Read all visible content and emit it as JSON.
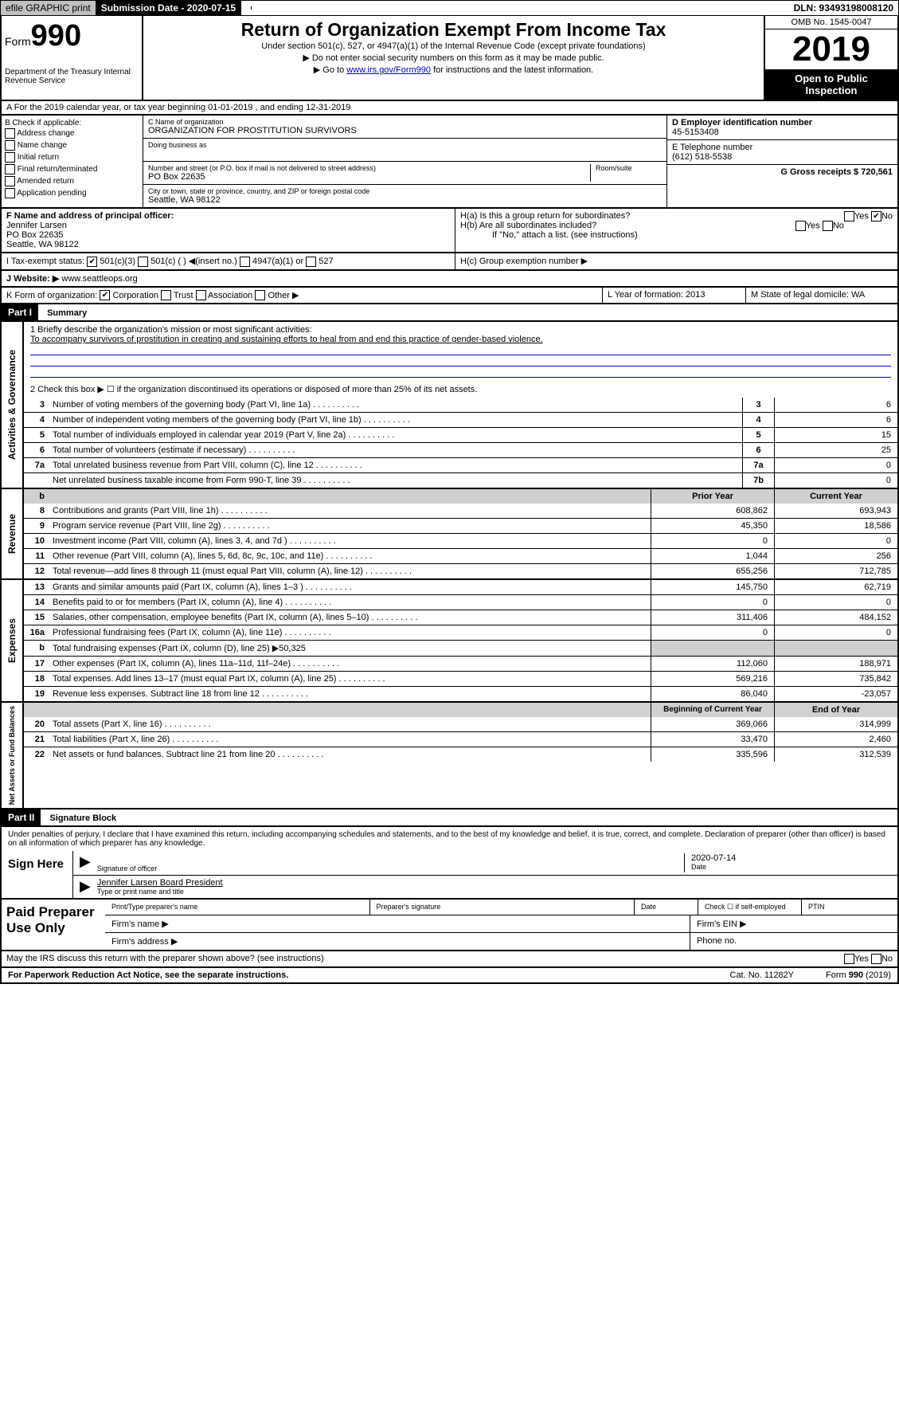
{
  "top": {
    "efile": "efile GRAPHIC print",
    "subdate_label": "Submission Date - 2020-07-15",
    "dln": "DLN: 93493198008120"
  },
  "header": {
    "form_prefix": "Form",
    "form_num": "990",
    "dept": "Department of the Treasury\nInternal Revenue Service",
    "title": "Return of Organization Exempt From Income Tax",
    "sub1": "Under section 501(c), 527, or 4947(a)(1) of the Internal Revenue Code (except private foundations)",
    "sub2": "▶ Do not enter social security numbers on this form as it may be made public.",
    "sub3_pre": "▶ Go to ",
    "sub3_link": "www.irs.gov/Form990",
    "sub3_post": " for instructions and the latest information.",
    "omb": "OMB No. 1545-0047",
    "year": "2019",
    "open": "Open to Public Inspection"
  },
  "line_a": "A   For the 2019 calendar year, or tax year beginning 01-01-2019    , and ending 12-31-2019",
  "b": {
    "label": "B Check if applicable:",
    "opts": [
      "Address change",
      "Name change",
      "Initial return",
      "Final return/terminated",
      "Amended return",
      "Application pending"
    ]
  },
  "c": {
    "label": "C Name of organization",
    "name": "ORGANIZATION FOR PROSTITUTION SURVIVORS",
    "dba_label": "Doing business as",
    "addr_label": "Number and street (or P.O. box if mail is not delivered to street address)",
    "room_label": "Room/suite",
    "addr": "PO Box 22635",
    "city_label": "City or town, state or province, country, and ZIP or foreign postal code",
    "city": "Seattle, WA  98122"
  },
  "d": {
    "label": "D Employer identification number",
    "val": "45-5153408"
  },
  "e": {
    "label": "E Telephone number",
    "val": "(612) 518-5538"
  },
  "g": {
    "label": "G Gross receipts $ 720,561"
  },
  "f": {
    "label": "F  Name and address of principal officer:",
    "name": "Jennifer Larsen",
    "addr1": "PO Box 22635",
    "addr2": "Seattle, WA  98122"
  },
  "h": {
    "a": "H(a)  Is this a group return for subordinates?",
    "b": "H(b)  Are all subordinates included?",
    "b_note": "If \"No,\" attach a list. (see instructions)",
    "c": "H(c)  Group exemption number ▶"
  },
  "i": {
    "label": "I    Tax-exempt status:",
    "c3": "501(c)(3)",
    "c": "501(c) (  ) ◀(insert no.)",
    "a1": "4947(a)(1) or",
    "527": "527"
  },
  "j": {
    "label": "J    Website: ▶",
    "val": "www.seattleops.org"
  },
  "k": {
    "label": "K Form of organization:",
    "corp": "Corporation",
    "trust": "Trust",
    "assoc": "Association",
    "other": "Other ▶"
  },
  "l": {
    "label": "L Year of formation: 2013"
  },
  "m": {
    "label": "M State of legal domicile: WA"
  },
  "part1": {
    "num": "Part I",
    "title": "Summary"
  },
  "summary": {
    "l1_label": "1  Briefly describe the organization's mission or most significant activities:",
    "l1_text": "To accompany survivors of prostitution in creating and sustaining efforts to heal from and end this practice of gender-based violence.",
    "l2": "2   Check this box ▶ ☐  if the organization discontinued its operations or disposed of more than 25% of its net assets.",
    "rows_top": [
      {
        "n": "3",
        "d": "Number of voting members of the governing body (Part VI, line 1a)",
        "box": "3",
        "v": "6"
      },
      {
        "n": "4",
        "d": "Number of independent voting members of the governing body (Part VI, line 1b)",
        "box": "4",
        "v": "6"
      },
      {
        "n": "5",
        "d": "Total number of individuals employed in calendar year 2019 (Part V, line 2a)",
        "box": "5",
        "v": "15"
      },
      {
        "n": "6",
        "d": "Total number of volunteers (estimate if necessary)",
        "box": "6",
        "v": "25"
      },
      {
        "n": "7a",
        "d": "Total unrelated business revenue from Part VIII, column (C), line 12",
        "box": "7a",
        "v": "0"
      },
      {
        "n": "",
        "d": "Net unrelated business taxable income from Form 990-T, line 39",
        "box": "7b",
        "v": "0"
      }
    ],
    "col_prior": "Prior Year",
    "col_current": "Current Year",
    "revenue": [
      {
        "n": "8",
        "d": "Contributions and grants (Part VIII, line 1h)",
        "p": "608,862",
        "c": "693,943"
      },
      {
        "n": "9",
        "d": "Program service revenue (Part VIII, line 2g)",
        "p": "45,350",
        "c": "18,586"
      },
      {
        "n": "10",
        "d": "Investment income (Part VIII, column (A), lines 3, 4, and 7d )",
        "p": "0",
        "c": "0"
      },
      {
        "n": "11",
        "d": "Other revenue (Part VIII, column (A), lines 5, 6d, 8c, 9c, 10c, and 11e)",
        "p": "1,044",
        "c": "256"
      },
      {
        "n": "12",
        "d": "Total revenue—add lines 8 through 11 (must equal Part VIII, column (A), line 12)",
        "p": "655,256",
        "c": "712,785"
      }
    ],
    "expenses": [
      {
        "n": "13",
        "d": "Grants and similar amounts paid (Part IX, column (A), lines 1–3 )",
        "p": "145,750",
        "c": "62,719"
      },
      {
        "n": "14",
        "d": "Benefits paid to or for members (Part IX, column (A), line 4)",
        "p": "0",
        "c": "0"
      },
      {
        "n": "15",
        "d": "Salaries, other compensation, employee benefits (Part IX, column (A), lines 5–10)",
        "p": "311,406",
        "c": "484,152"
      },
      {
        "n": "16a",
        "d": "Professional fundraising fees (Part IX, column (A), line 11e)",
        "p": "0",
        "c": "0"
      },
      {
        "n": "b",
        "d": "Total fundraising expenses (Part IX, column (D), line 25) ▶50,325",
        "p": "",
        "c": "",
        "grey": true
      },
      {
        "n": "17",
        "d": "Other expenses (Part IX, column (A), lines 11a–11d, 11f–24e)",
        "p": "112,060",
        "c": "188,971"
      },
      {
        "n": "18",
        "d": "Total expenses. Add lines 13–17 (must equal Part IX, column (A), line 25)",
        "p": "569,216",
        "c": "735,842"
      },
      {
        "n": "19",
        "d": "Revenue less expenses. Subtract line 18 from line 12",
        "p": "86,040",
        "c": "-23,057"
      }
    ],
    "col_begin": "Beginning of Current Year",
    "col_end": "End of Year",
    "netassets": [
      {
        "n": "20",
        "d": "Total assets (Part X, line 16)",
        "p": "369,066",
        "c": "314,999"
      },
      {
        "n": "21",
        "d": "Total liabilities (Part X, line 26)",
        "p": "33,470",
        "c": "2,460"
      },
      {
        "n": "22",
        "d": "Net assets or fund balances. Subtract line 21 from line 20",
        "p": "335,596",
        "c": "312,539"
      }
    ]
  },
  "sides": {
    "gov": "Activities & Governance",
    "rev": "Revenue",
    "exp": "Expenses",
    "net": "Net Assets or Fund Balances"
  },
  "part2": {
    "num": "Part II",
    "title": "Signature Block"
  },
  "sig": {
    "perjury": "Under penalties of perjury, I declare that I have examined this return, including accompanying schedules and statements, and to the best of my knowledge and belief, it is true, correct, and complete. Declaration of preparer (other than officer) is based on all information of which preparer has any knowledge.",
    "sign_here": "Sign Here",
    "sig_officer": "Signature of officer",
    "date_label": "Date",
    "date": "2020-07-14",
    "name": "Jennifer Larsen  Board President",
    "type_label": "Type or print name and title"
  },
  "prep": {
    "label": "Paid Preparer Use Only",
    "r1": [
      "Print/Type preparer's name",
      "Preparer's signature",
      "Date",
      "Check ☐ if self-employed",
      "PTIN"
    ],
    "firm_name": "Firm's name   ▶",
    "firm_ein": "Firm's EIN ▶",
    "firm_addr": "Firm's address ▶",
    "phone": "Phone no."
  },
  "discuss": "May the IRS discuss this return with the preparer shown above? (see instructions)",
  "footer": {
    "pra": "For Paperwork Reduction Act Notice, see the separate instructions.",
    "cat": "Cat. No. 11282Y",
    "form": "Form 990 (2019)"
  }
}
